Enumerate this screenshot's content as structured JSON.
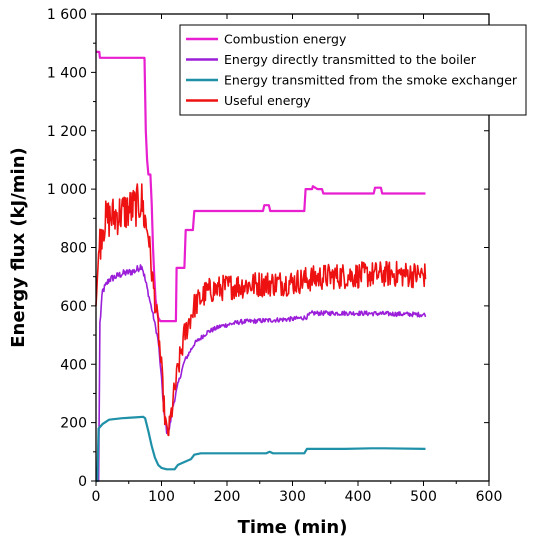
{
  "chart_data": {
    "type": "line",
    "title": "",
    "xlabel": "Time (min)",
    "ylabel": "Energy flux (kJ/min)",
    "xlim": [
      0,
      600
    ],
    "ylim": [
      0,
      1600
    ],
    "xticks": [
      0,
      100,
      200,
      300,
      400,
      500,
      600
    ],
    "yticks": [
      0,
      200,
      400,
      600,
      800,
      1000,
      1200,
      1400,
      1600
    ],
    "xtick_labels": [
      "0",
      "100",
      "200",
      "300",
      "400",
      "500",
      "600"
    ],
    "ytick_labels": [
      "0",
      "200",
      "400",
      "600",
      "800",
      "1 000",
      "1 200",
      "1 400",
      "1 600"
    ],
    "grid": false,
    "legend_position": "top-right",
    "series": [
      {
        "name": "Combustion energy",
        "color": "#e81fd0",
        "noise": 0,
        "points": [
          [
            0,
            1470
          ],
          [
            5,
            1470
          ],
          [
            6,
            1450
          ],
          [
            74,
            1450
          ],
          [
            76,
            1200
          ],
          [
            78,
            1100
          ],
          [
            80,
            1050
          ],
          [
            83,
            1050
          ],
          [
            85,
            950
          ],
          [
            87,
            800
          ],
          [
            89,
            700
          ],
          [
            91,
            620
          ],
          [
            95,
            560
          ],
          [
            98,
            548
          ],
          [
            122,
            548
          ],
          [
            123,
            730
          ],
          [
            135,
            730
          ],
          [
            137,
            860
          ],
          [
            148,
            860
          ],
          [
            150,
            925
          ],
          [
            255,
            925
          ],
          [
            257,
            945
          ],
          [
            264,
            945
          ],
          [
            266,
            925
          ],
          [
            318,
            925
          ],
          [
            320,
            1000
          ],
          [
            330,
            1000
          ],
          [
            331,
            1010
          ],
          [
            338,
            1000
          ],
          [
            345,
            1000
          ],
          [
            347,
            985
          ],
          [
            424,
            985
          ],
          [
            426,
            1005
          ],
          [
            435,
            1005
          ],
          [
            437,
            985
          ],
          [
            503,
            985
          ]
        ]
      },
      {
        "name": "Energy directly transmitted to the boiler",
        "color": "#9b1fd9",
        "noise": 8,
        "points": [
          [
            0,
            0
          ],
          [
            4,
            0
          ],
          [
            6,
            540
          ],
          [
            10,
            650
          ],
          [
            20,
            690
          ],
          [
            40,
            710
          ],
          [
            60,
            720
          ],
          [
            70,
            740
          ],
          [
            74,
            700
          ],
          [
            80,
            640
          ],
          [
            88,
            560
          ],
          [
            95,
            480
          ],
          [
            100,
            350
          ],
          [
            104,
            230
          ],
          [
            108,
            170
          ],
          [
            112,
            180
          ],
          [
            118,
            260
          ],
          [
            125,
            330
          ],
          [
            135,
            410
          ],
          [
            150,
            470
          ],
          [
            170,
            510
          ],
          [
            190,
            530
          ],
          [
            220,
            545
          ],
          [
            260,
            550
          ],
          [
            300,
            555
          ],
          [
            320,
            560
          ],
          [
            330,
            575
          ],
          [
            400,
            575
          ],
          [
            503,
            570
          ]
        ]
      },
      {
        "name": "Energy transmitted from the smoke exchanger",
        "color": "#1e90a8",
        "noise": 0,
        "points": [
          [
            0,
            0
          ],
          [
            2,
            0
          ],
          [
            4,
            180
          ],
          [
            10,
            195
          ],
          [
            20,
            210
          ],
          [
            40,
            215
          ],
          [
            60,
            218
          ],
          [
            72,
            220
          ],
          [
            75,
            215
          ],
          [
            80,
            170
          ],
          [
            85,
            120
          ],
          [
            90,
            80
          ],
          [
            95,
            55
          ],
          [
            100,
            45
          ],
          [
            108,
            40
          ],
          [
            120,
            40
          ],
          [
            125,
            55
          ],
          [
            135,
            65
          ],
          [
            145,
            75
          ],
          [
            150,
            90
          ],
          [
            160,
            95
          ],
          [
            200,
            95
          ],
          [
            260,
            95
          ],
          [
            265,
            100
          ],
          [
            270,
            95
          ],
          [
            318,
            95
          ],
          [
            322,
            110
          ],
          [
            380,
            110
          ],
          [
            420,
            112
          ],
          [
            440,
            112
          ],
          [
            503,
            110
          ]
        ]
      },
      {
        "name": "Useful energy",
        "color": "#ee1111",
        "noise": 45,
        "points": [
          [
            0,
            600
          ],
          [
            4,
            780
          ],
          [
            10,
            880
          ],
          [
            20,
            900
          ],
          [
            40,
            920
          ],
          [
            60,
            940
          ],
          [
            70,
            960
          ],
          [
            74,
            900
          ],
          [
            80,
            850
          ],
          [
            85,
            720
          ],
          [
            90,
            620
          ],
          [
            95,
            520
          ],
          [
            100,
            380
          ],
          [
            104,
            250
          ],
          [
            108,
            160
          ],
          [
            112,
            180
          ],
          [
            118,
            280
          ],
          [
            125,
            380
          ],
          [
            135,
            500
          ],
          [
            150,
            600
          ],
          [
            170,
            650
          ],
          [
            200,
            665
          ],
          [
            250,
            675
          ],
          [
            300,
            680
          ],
          [
            320,
            690
          ],
          [
            350,
            700
          ],
          [
            400,
            705
          ],
          [
            450,
            710
          ],
          [
            503,
            705
          ]
        ]
      }
    ]
  }
}
